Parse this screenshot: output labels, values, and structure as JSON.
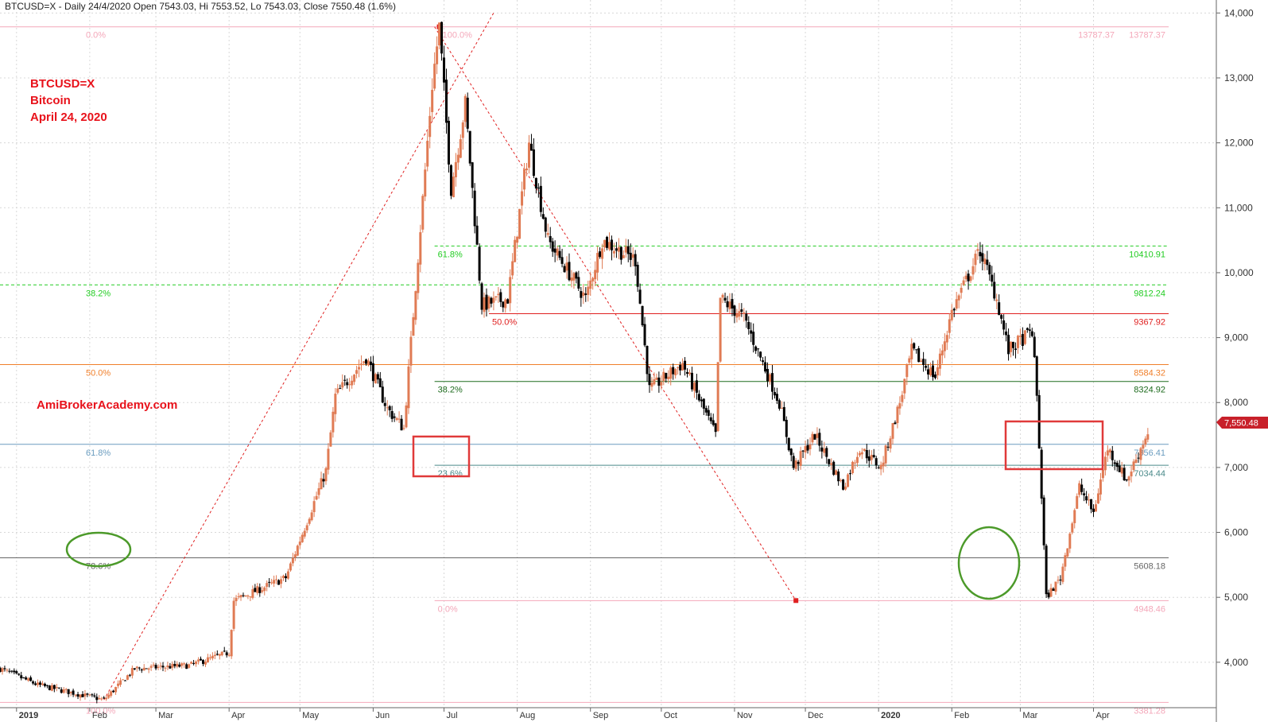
{
  "title": "BTCUSD=X - Daily 24/4/2020 Open 7543.03, Hi 7553.52, Lo 7543.03, Close 7550.48 (1.6%)",
  "annotations": {
    "symbol": "BTCUSD=X",
    "name": "Bitcoin",
    "date": "April 24, 2020",
    "site": "AmiBrokerAcademy.com"
  },
  "last_price": "7,550.48",
  "colors": {
    "up": "#e07b54",
    "down": "#000000",
    "annotation_red": "#e8121b",
    "circle_green": "#4c9a2a",
    "box_red": "#e03a3a"
  },
  "chart_data": {
    "type": "candlestick",
    "ylim": [
      3300,
      14200
    ],
    "y_ticks": [
      4000,
      5000,
      6000,
      7000,
      8000,
      9000,
      10000,
      11000,
      12000,
      13000,
      14000
    ],
    "y_tick_labels": [
      "4,000",
      "5,000",
      "6,000",
      "7,000",
      "8,000",
      "9,000",
      "10,000",
      "11,000",
      "12,000",
      "13,000",
      "14,000"
    ],
    "x_labels": [
      "2019",
      "Feb",
      "Mar",
      "Apr",
      "May",
      "Jun",
      "Jul",
      "Aug",
      "Sep",
      "Oct",
      "Nov",
      "Dec",
      "2020",
      "Feb",
      "Mar",
      "Apr"
    ],
    "x_label_dates": [
      "2019-01-01",
      "2019-02-01",
      "2019-03-01",
      "2019-04-01",
      "2019-05-01",
      "2019-06-01",
      "2019-07-01",
      "2019-08-01",
      "2019-09-01",
      "2019-10-01",
      "2019-11-01",
      "2019-12-01",
      "2020-01-01",
      "2020-02-01",
      "2020-03-01",
      "2020-04-01"
    ],
    "date_range": [
      "2018-12-25",
      "2020-05-23"
    ],
    "price_path": [
      [
        "2018-12-25",
        3900
      ],
      [
        "2019-01-10",
        3650
      ],
      [
        "2019-02-07",
        3420
      ],
      [
        "2019-02-20",
        3900
      ],
      [
        "2019-03-15",
        3950
      ],
      [
        "2019-04-01",
        4150
      ],
      [
        "2019-04-03",
        4950
      ],
      [
        "2019-04-25",
        5300
      ],
      [
        "2019-05-12",
        6950
      ],
      [
        "2019-05-16",
        8100
      ],
      [
        "2019-05-29",
        8700
      ],
      [
        "2019-06-07",
        7900
      ],
      [
        "2019-06-14",
        7600
      ],
      [
        "2019-06-26",
        12900
      ],
      [
        "2019-06-29",
        13787
      ],
      [
        "2019-07-04",
        11300
      ],
      [
        "2019-07-10",
        12600
      ],
      [
        "2019-07-17",
        9500
      ],
      [
        "2019-07-28",
        9600
      ],
      [
        "2019-08-06",
        12000
      ],
      [
        "2019-08-14",
        10500
      ],
      [
        "2019-08-30",
        9600
      ],
      [
        "2019-09-06",
        10500
      ],
      [
        "2019-09-20",
        10200
      ],
      [
        "2019-09-26",
        8200
      ],
      [
        "2019-10-10",
        8600
      ],
      [
        "2019-10-24",
        7500
      ],
      [
        "2019-10-26",
        9600
      ],
      [
        "2019-11-05",
        9300
      ],
      [
        "2019-11-20",
        8000
      ],
      [
        "2019-11-26",
        7000
      ],
      [
        "2019-12-05",
        7500
      ],
      [
        "2019-12-17",
        6700
      ],
      [
        "2019-12-24",
        7300
      ],
      [
        "2020-01-02",
        7000
      ],
      [
        "2020-01-10",
        8000
      ],
      [
        "2020-01-15",
        8800
      ],
      [
        "2020-01-25",
        8400
      ],
      [
        "2020-02-01",
        9400
      ],
      [
        "2020-02-13",
        10350
      ],
      [
        "2020-02-20",
        9600
      ],
      [
        "2020-02-25",
        8800
      ],
      [
        "2020-03-06",
        9100
      ],
      [
        "2020-03-08",
        8100
      ],
      [
        "2020-03-12",
        5000
      ],
      [
        "2020-03-18",
        5300
      ],
      [
        "2020-03-26",
        6700
      ],
      [
        "2020-04-01",
        6300
      ],
      [
        "2020-04-07",
        7300
      ],
      [
        "2020-04-15",
        6800
      ],
      [
        "2020-04-24",
        7550
      ]
    ],
    "fib_levels": [
      {
        "label": "0.0%",
        "value": 13787.37,
        "value_label": "13787.37",
        "value_label2": "13787.37",
        "color": "#f4a7b9"
      },
      {
        "label": "38.2%",
        "value": 9812.24,
        "value_label": "9812.24",
        "color": "#22cc22",
        "dashed": true
      },
      {
        "label": "50.0%",
        "value": 8584.32,
        "value_label": "8584.32",
        "color": "#f07f2a"
      },
      {
        "label": "61.8%",
        "value": 7356.41,
        "value_label": "7356.41",
        "color": "#6a9cbf"
      },
      {
        "label": "78.6%",
        "value": 5608.18,
        "value_label": "5608.18",
        "color": "#666666"
      },
      {
        "label": "100.0%",
        "value": 3381.28,
        "value_label": "3381.28",
        "color": "#f4a7b9"
      },
      {
        "label": "100.0%",
        "value": 13787.37,
        "color": "#f4a7b9",
        "label_only": true
      },
      {
        "label": "61.8%",
        "value": 10410.91,
        "value_label": "10410.91",
        "color": "#22cc22",
        "dashed": true,
        "from": "2019-06-27"
      },
      {
        "label": "50.0%",
        "value": 9367.92,
        "value_label": "9367.92",
        "color": "#e02020",
        "from": "2019-07-20"
      },
      {
        "label": "38.2%",
        "value": 8324.92,
        "value_label": "8324.92",
        "color": "#1d6b1d",
        "from": "2019-06-27"
      },
      {
        "label": "23.6%",
        "value": 7034.44,
        "value_label": "7034.44",
        "color": "#4a8a8a",
        "from": "2019-06-27"
      },
      {
        "label": "0.0%",
        "value": 4948.46,
        "value_label": "4948.46",
        "color": "#f4a7b9",
        "from": "2019-06-27"
      }
    ],
    "trend_lines": [
      {
        "from": [
          "2019-02-07",
          3420
        ],
        "to": [
          "2019-07-22",
          14000
        ],
        "color": "#e02020",
        "dashed": true
      },
      {
        "from": [
          "2019-06-27",
          13787
        ],
        "to": [
          "2019-11-27",
          4950
        ],
        "color": "#e02020",
        "dashed": true
      }
    ]
  }
}
